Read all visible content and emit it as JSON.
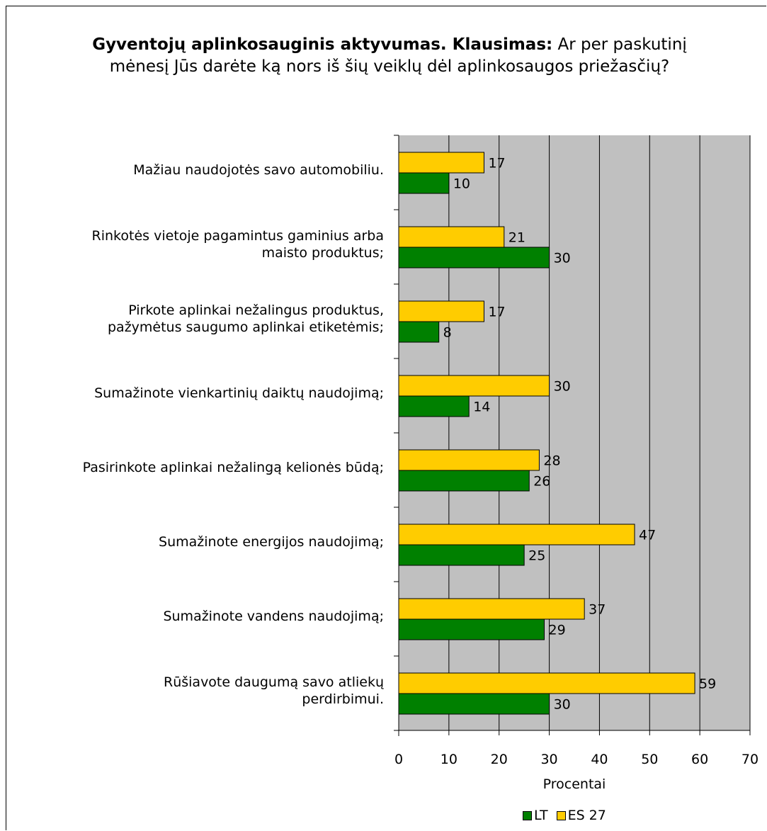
{
  "chart_data": {
    "type": "bar",
    "orientation": "horizontal",
    "title_bold": "Gyventojų aplinkosauginis aktyvumas. Klausimas:",
    "title_rest": "Ar per paskutinį mėnesį Jūs darėte ką nors iš šių veiklų dėl aplinkosaugos priežasčių?",
    "xlabel": "Procentai",
    "xlim": [
      0,
      70
    ],
    "xticks": [
      0,
      10,
      20,
      30,
      40,
      50,
      60,
      70
    ],
    "grid": true,
    "legend_position": "bottom",
    "categories": [
      "Mažiau naudojotės savo automobiliu.",
      "Rinkotės vietoje pagamintus gaminius arba maisto produktus;",
      "Pirkote aplinkai nežalingus produktus, pažymėtus saugumo aplinkai etiketėmis;",
      "Sumažinote vienkartinių daiktų naudojimą;",
      "Pasirinkote aplinkai nežalingą kelionės būdą;",
      "Sumažinote energijos naudojimą;",
      "Sumažinote vandens naudojimą;",
      "Rūšiavote daugumą savo atliekų perdirbimui."
    ],
    "series": [
      {
        "name": "ES 27",
        "color": "#FFCC00",
        "values": [
          17,
          21,
          17,
          30,
          28,
          47,
          37,
          59
        ]
      },
      {
        "name": "LT",
        "color": "#008000",
        "values": [
          10,
          30,
          8,
          14,
          26,
          25,
          29,
          30
        ]
      }
    ]
  },
  "category_lines": [
    [
      "Mažiau naudojotės savo automobiliu."
    ],
    [
      "Rinkotės vietoje pagamintus gaminius arba",
      "maisto produktus;"
    ],
    [
      "Pirkote aplinkai nežalingus produktus,",
      "pažymėtus saugumo aplinkai etiketėmis;"
    ],
    [
      "Sumažinote vienkartinių daiktų naudojimą;"
    ],
    [
      "Pasirinkote aplinkai nežalingą kelionės būdą;"
    ],
    [
      "Sumažinote energijos naudojimą;"
    ],
    [
      "Sumažinote vandens naudojimą;"
    ],
    [
      "Rūšiavote daugumą savo atliekų",
      "perdirbimui."
    ]
  ],
  "legend": [
    "LT",
    "ES 27"
  ],
  "colors": {
    "plot_bg": "#C0C0C0",
    "lt": "#008000",
    "es": "#FFCC00"
  }
}
